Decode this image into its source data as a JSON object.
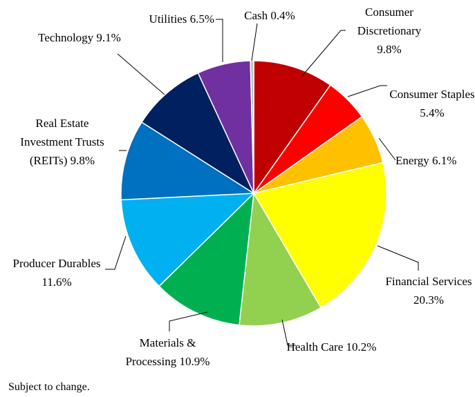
{
  "chart_data": {
    "type": "pie",
    "categories": [
      "Consumer Discretionary",
      "Consumer Staples",
      "Energy",
      "Financial Services",
      "Health Care",
      "Materials & Processing",
      "Producer Durables",
      "Real Estate Investment Trusts (REITs)",
      "Technology",
      "Utilities",
      "Cash"
    ],
    "values": [
      9.8,
      5.4,
      6.1,
      20.3,
      10.2,
      10.9,
      11.6,
      9.8,
      9.1,
      6.5,
      0.4
    ],
    "value_labels": [
      "9.8%",
      "5.4%",
      "6.1%",
      "20.3%",
      "10.2%",
      "10.9%",
      "11.6%",
      "9.8%",
      "9.1%",
      "6.5%",
      "0.4%"
    ],
    "colors": [
      "#c00000",
      "#ff0000",
      "#ffc000",
      "#ffff00",
      "#92d050",
      "#00b050",
      "#00b0f0",
      "#0070c0",
      "#002060",
      "#7030a0",
      "#b4c8bc"
    ],
    "note": "Subject to change."
  }
}
